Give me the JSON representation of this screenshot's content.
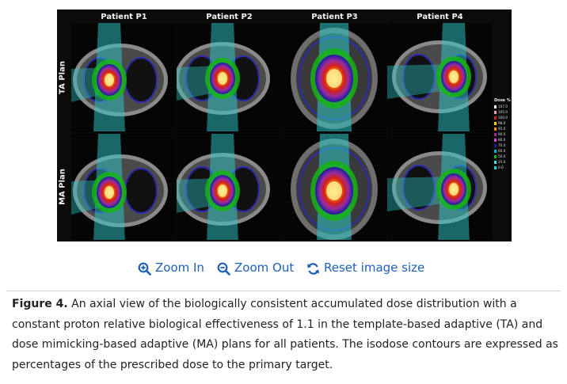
{
  "figure": {
    "columns": [
      "Patient P1",
      "Patient P2",
      "Patient P3",
      "Patient P4"
    ],
    "rows": [
      "TA Plan",
      "MA Plan"
    ],
    "legend": {
      "title": "Dose %",
      "levels": [
        {
          "label": "107.0",
          "color": "#ffffff"
        },
        {
          "label": "105.0",
          "color": "#f0a0b0"
        },
        {
          "label": "100.0",
          "color": "#d21e1e"
        },
        {
          "label": "98.0",
          "color": "#ffd200"
        },
        {
          "label": "95.0",
          "color": "#ff8c00"
        },
        {
          "label": "90.0",
          "color": "#9b2d9b"
        },
        {
          "label": "80.0",
          "color": "#e040e0"
        },
        {
          "label": "70.0",
          "color": "#1a1aa0"
        },
        {
          "label": "60.0",
          "color": "#00b4c8"
        },
        {
          "label": "50.0",
          "color": "#18b418"
        },
        {
          "label": "25.0",
          "color": "#40e0e0"
        },
        {
          "label": "0.0",
          "color": "#20d0d0"
        }
      ]
    }
  },
  "zoom_controls": {
    "zoom_in": "Zoom In",
    "zoom_out": "Zoom Out",
    "reset": "Reset image size"
  },
  "caption": {
    "label": "Figure 4.",
    "text": " An axial view of the biologically consistent accumulated dose distribution with a constant proton relative biological effectiveness of 1.1 in the template-based adaptive (TA) and dose mimicking-based adaptive (MA) plans for all patients. The isodose contours are expressed as percentages of the prescribed dose to the primary target."
  },
  "colors": {
    "link": "#1f5fb8",
    "figure_bg": "#0b0b0b"
  }
}
